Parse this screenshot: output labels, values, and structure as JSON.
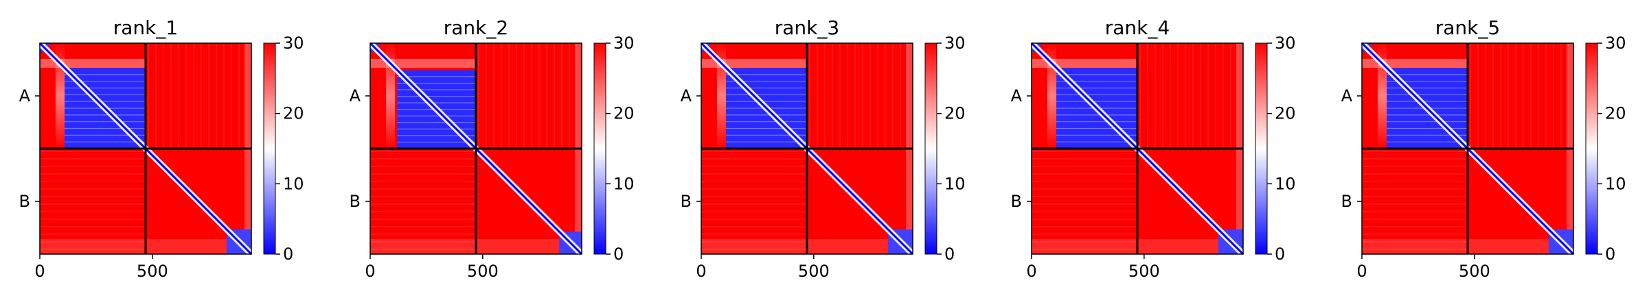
{
  "chart_data": {
    "type": "heatmap",
    "description_note": "",
    "shared": {
      "x_ticks": [
        0,
        500
      ],
      "x_range": [
        0,
        940
      ],
      "domain_boundary": 470,
      "y_tick_labels": [
        "A",
        "B"
      ],
      "colorbar": {
        "range": [
          0,
          30
        ],
        "ticks": [
          0,
          10,
          20,
          30
        ],
        "colors": {
          "low": "#0000ff",
          "mid": "#ffffff",
          "high": "#ff0000"
        }
      }
    },
    "panels": [
      {
        "title": "rank_1",
        "A_block_blue_start": 110,
        "A_block_blue_end": 470,
        "B_block_blue_start": 830
      },
      {
        "title": "rank_2",
        "A_block_blue_start": 120,
        "A_block_blue_end": 470,
        "B_block_blue_start": 840
      },
      {
        "title": "rank_3",
        "A_block_blue_start": 110,
        "A_block_blue_end": 470,
        "B_block_blue_start": 830
      },
      {
        "title": "rank_4",
        "A_block_blue_start": 110,
        "A_block_blue_end": 470,
        "B_block_blue_start": 830
      },
      {
        "title": "rank_5",
        "A_block_blue_start": 110,
        "A_block_blue_end": 470,
        "B_block_blue_start": 830
      }
    ]
  }
}
